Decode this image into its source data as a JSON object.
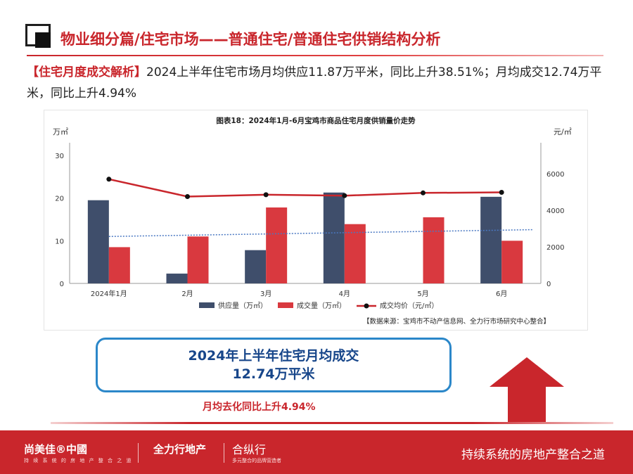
{
  "header": {
    "title": "物业细分篇/住宅市场——普通住宅/普通住宅供销结构分析",
    "summary_tag": "【住宅月度成交解析】",
    "summary_text": "2024上半年住宅市场月均供应11.87万平米，同比上升38.51%；月均成交12.74万平米，同比上升4.94%"
  },
  "chart_data": {
    "type": "bar",
    "title": "图表18：2024年1月-6月宝鸡市商品住宅月度供销量价走势",
    "categories": [
      "2024年1月",
      "2月",
      "3月",
      "4月",
      "5月",
      "6月"
    ],
    "y_left": {
      "unit": "万㎡",
      "range": [
        0,
        30
      ],
      "ticks": [
        0,
        10,
        20,
        30
      ]
    },
    "y_right": {
      "unit": "元/㎡",
      "range": [
        0,
        7000
      ],
      "ticks": [
        0,
        2000,
        4000,
        6000
      ]
    },
    "series": [
      {
        "name": "供应量（万㎡）",
        "kind": "bar",
        "axis": "left",
        "color": "#3f4e6b",
        "values": [
          19.5,
          2.3,
          7.8,
          21.3,
          0,
          20.3
        ]
      },
      {
        "name": "成交量（万㎡）",
        "kind": "bar",
        "axis": "left",
        "color": "#d9393f",
        "values": [
          8.5,
          11.0,
          17.8,
          13.9,
          15.5,
          10.0
        ]
      },
      {
        "name": "成交均价（元/㎡）",
        "kind": "line",
        "axis": "right",
        "color": "#c9262c",
        "values": [
          5700,
          4750,
          4850,
          4800,
          4950,
          4980
        ]
      }
    ],
    "trendline": {
      "axis": "left",
      "color": "#4a78c2",
      "start": 11.0,
      "end": 12.6
    },
    "grid": false,
    "legend": "bottom"
  },
  "source": "【数据来源：宝鸡市不动产信息网、全力行市场研究中心整合】",
  "highlight": {
    "line1": "2024年上半年住宅月均成交",
    "line2": "12.74万平米"
  },
  "yoy_note": "月均去化同比上升4.94%",
  "footer": {
    "brand1": "尚美佳®中國",
    "brand1_sub": "持 续 系 统 的 房 地 产 整 合 之 道",
    "brand2": "全力行地产",
    "brand3": "合纵行",
    "brand3_sub": "多元整合的品牌营造者",
    "slogan": "持续系统的房地产整合之道"
  },
  "colors": {
    "accent": "#c9262c",
    "highlight_border": "#2b87c9",
    "highlight_text": "#17468a"
  }
}
